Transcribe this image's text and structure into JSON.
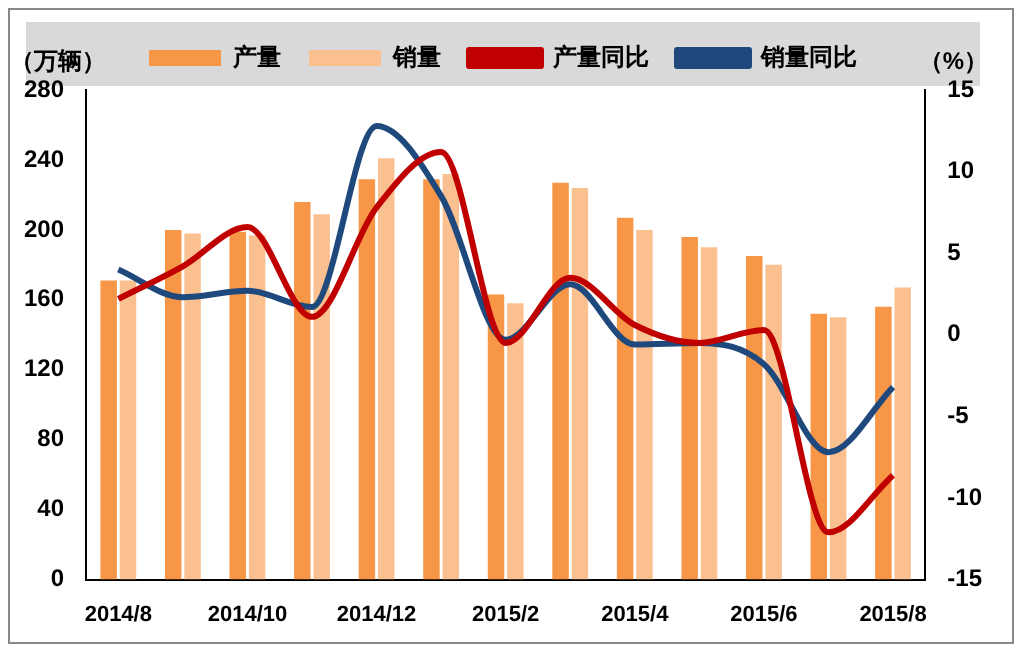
{
  "chart_data": {
    "type": "bar",
    "categories": [
      "2014/8",
      null,
      "2014/10",
      null,
      "2014/12",
      null,
      "2015/2",
      null,
      "2015/4",
      null,
      "2015/6",
      null,
      "2015/8"
    ],
    "ylabel": "（万辆）",
    "y2label": "（%）",
    "ylim": [
      0,
      280
    ],
    "yticks": [
      0,
      40,
      80,
      120,
      160,
      200,
      240,
      280
    ],
    "y2lim": [
      -15,
      15
    ],
    "y2ticks": [
      -15,
      -10,
      -5,
      0,
      5,
      10,
      15
    ],
    "legend": "top",
    "grid": false,
    "series": [
      {
        "name": "产量",
        "color": "#f79646",
        "values": [
          171,
          200,
          199,
          216,
          229,
          229,
          163,
          227,
          207,
          196,
          185,
          152,
          156
        ]
      },
      {
        "name": "销量",
        "color": "#fac090",
        "values": [
          171,
          198,
          197,
          209,
          241,
          232,
          158,
          224,
          200,
          190,
          180,
          150,
          167
        ]
      },
      {
        "name": "产量同比",
        "type": "line",
        "axis": "y2",
        "color": "#c00000",
        "values": [
          2.2,
          4.2,
          6.6,
          1.1,
          7.8,
          11.2,
          -0.5,
          3.5,
          0.6,
          -0.5,
          0.3,
          -12.1,
          -8.6
        ]
      },
      {
        "name": "销量同比",
        "type": "line",
        "axis": "y2",
        "color": "#1f497d",
        "values": [
          4.0,
          2.3,
          2.7,
          1.7,
          12.8,
          8.5,
          -0.3,
          3.1,
          -0.6,
          -0.5,
          -1.8,
          -7.2,
          -3.2
        ]
      }
    ]
  }
}
